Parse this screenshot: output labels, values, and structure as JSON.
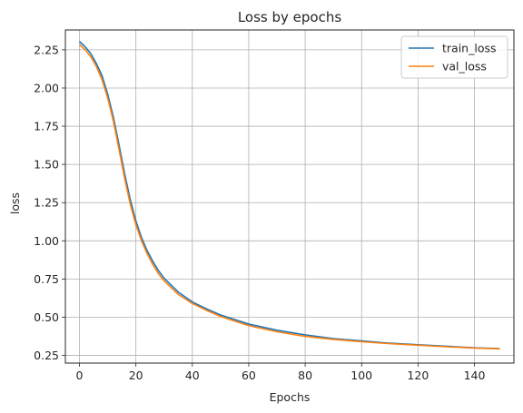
{
  "chart_data": {
    "type": "line",
    "title": "Loss by epochs",
    "xlabel": "Epochs",
    "ylabel": "loss",
    "xlim": [
      -5,
      154
    ],
    "ylim": [
      0.2,
      2.38
    ],
    "xticks": [
      0,
      20,
      40,
      60,
      80,
      100,
      120,
      140
    ],
    "yticks": [
      0.25,
      0.5,
      0.75,
      1.0,
      1.25,
      1.5,
      1.75,
      2.0,
      2.25
    ],
    "grid": true,
    "legend_position": "top-right",
    "series": [
      {
        "name": "train_loss",
        "color": "#1f77b4",
        "x": [
          0,
          2,
          4,
          6,
          8,
          10,
          12,
          14,
          16,
          18,
          20,
          22,
          24,
          26,
          28,
          30,
          35,
          40,
          45,
          50,
          55,
          60,
          70,
          80,
          90,
          100,
          110,
          120,
          130,
          140,
          149
        ],
        "y": [
          2.305,
          2.27,
          2.225,
          2.16,
          2.08,
          1.96,
          1.81,
          1.63,
          1.44,
          1.27,
          1.13,
          1.02,
          0.935,
          0.865,
          0.805,
          0.755,
          0.665,
          0.6,
          0.555,
          0.515,
          0.485,
          0.455,
          0.415,
          0.385,
          0.36,
          0.345,
          0.33,
          0.32,
          0.31,
          0.3,
          0.295
        ]
      },
      {
        "name": "val_loss",
        "color": "#ff7f0e",
        "x": [
          0,
          2,
          4,
          6,
          8,
          10,
          12,
          14,
          16,
          18,
          20,
          22,
          24,
          26,
          28,
          30,
          35,
          40,
          45,
          50,
          55,
          60,
          70,
          80,
          90,
          100,
          110,
          120,
          130,
          140,
          149
        ],
        "y": [
          2.285,
          2.25,
          2.205,
          2.14,
          2.055,
          1.935,
          1.785,
          1.6,
          1.41,
          1.24,
          1.105,
          1.0,
          0.915,
          0.845,
          0.785,
          0.738,
          0.65,
          0.59,
          0.545,
          0.505,
          0.475,
          0.445,
          0.405,
          0.375,
          0.355,
          0.34,
          0.327,
          0.317,
          0.307,
          0.298,
          0.293
        ]
      }
    ]
  }
}
